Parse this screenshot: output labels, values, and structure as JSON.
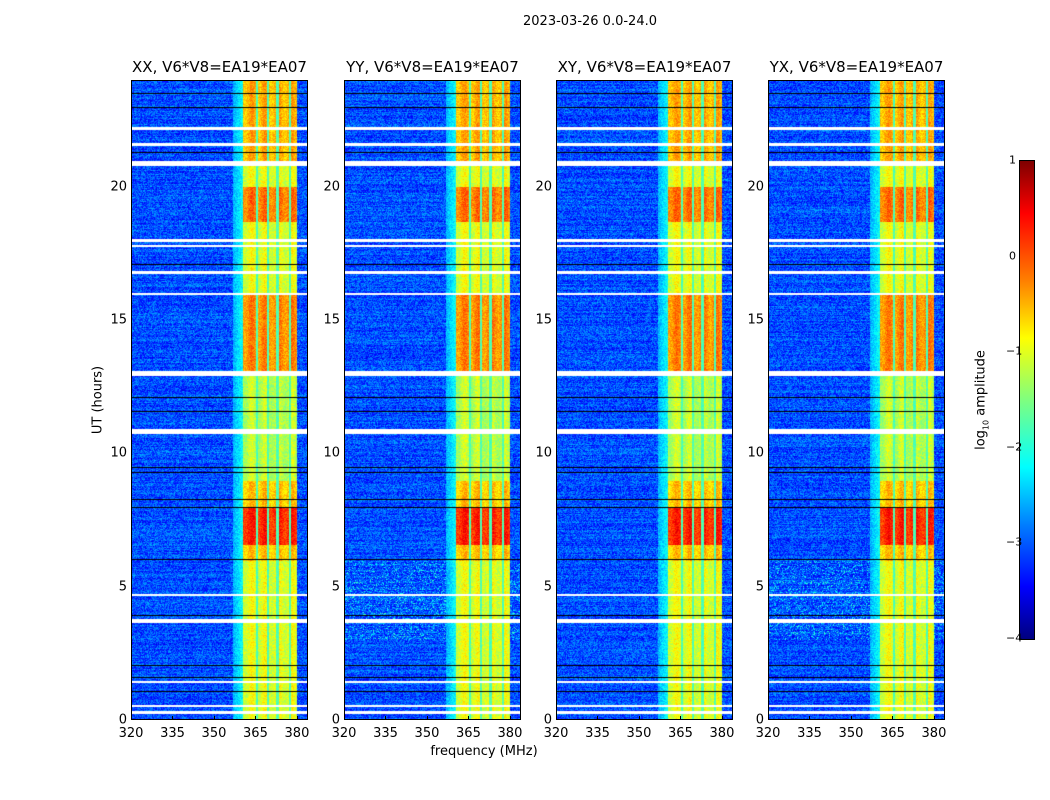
{
  "suptitle": "2023-03-26 0.0-24.0",
  "chart_data": [
    {
      "type": "heatmap",
      "title": "XX, V6*V8=EA19*EA07"
    },
    {
      "type": "heatmap",
      "title": "YY, V6*V8=EA19*EA07"
    },
    {
      "type": "heatmap",
      "title": "XY, V6*V8=EA19*EA07"
    },
    {
      "type": "heatmap",
      "title": "YX, V6*V8=EA19*EA07"
    }
  ],
  "common": {
    "xlabel": "frequency (MHz)",
    "ylabel": "UT (hours)",
    "xlim": [
      320,
      384
    ],
    "ylim": [
      0,
      24
    ],
    "xticks": [
      "320",
      "335",
      "350",
      "365",
      "380"
    ],
    "xtick_values": [
      320,
      335,
      350,
      365,
      380
    ],
    "yticks": [
      "0",
      "5",
      "10",
      "15",
      "20"
    ],
    "ytick_values": [
      0,
      5,
      10,
      15,
      20
    ],
    "background_log_amp": -3.0,
    "rfi_band_mhz": [
      360.5,
      380
    ],
    "rfi_gap_channels_mhz": [
      365.5,
      369.5,
      373,
      377.5
    ],
    "rfi_band_level_by_hour": [
      [
        0,
        6,
        -1.0
      ],
      [
        6,
        6.6,
        -0.6
      ],
      [
        6.6,
        8,
        0.2
      ],
      [
        8,
        9,
        -0.6
      ],
      [
        9,
        13,
        -1.2
      ],
      [
        13,
        16,
        -0.3
      ],
      [
        16,
        18.7,
        -1.0
      ],
      [
        18.7,
        20,
        -0.2
      ],
      [
        20,
        21,
        -1.0
      ],
      [
        21,
        24,
        -0.5
      ]
    ],
    "flagged_hours": [
      0.3,
      0.55,
      1.45,
      3.7,
      3.75,
      4.7,
      10.8,
      10.9,
      12.95,
      13.05,
      16.0,
      16.8,
      17.8,
      18.0,
      20.85,
      20.95,
      21.6,
      22.2
    ],
    "dark_row_hours": [
      1.1,
      1.6,
      2.05,
      3.95,
      6.05,
      8.0,
      8.3,
      9.3,
      9.5,
      11.6,
      12.1,
      17.1,
      21.3,
      23.0,
      23.5
    ]
  },
  "colorbar": {
    "label": "log10 amplitude",
    "label_main": "log",
    "label_sub": "10",
    "label_rest": " amplitude",
    "ticks": [
      "1",
      "0",
      "−1",
      "−2",
      "−3",
      "−4"
    ],
    "range": [
      -4,
      1
    ],
    "colormap": "jet"
  }
}
